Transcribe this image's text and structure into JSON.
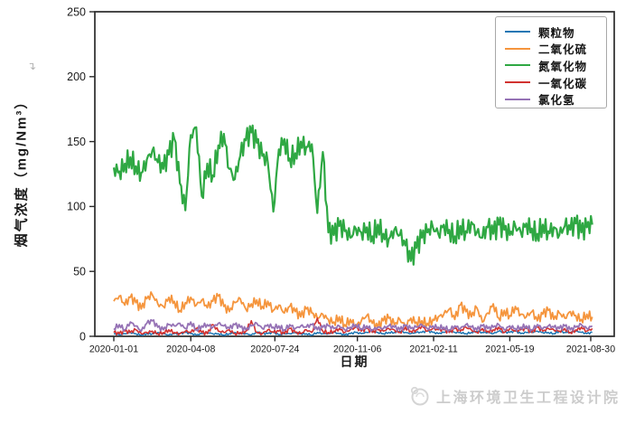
{
  "chart": {
    "return_mark": "↴"
  },
  "chart_data": {
    "type": "line",
    "title": "",
    "xlabel": "日期",
    "ylabel": "烟气浓度（mg/Nm³）",
    "ylim": [
      0,
      250
    ],
    "y_ticks": [
      0,
      50,
      100,
      150,
      200,
      250
    ],
    "x_tick_labels": [
      "2020-01-01",
      "2020-04-08",
      "2020-07-24",
      "2020-11-06",
      "2021-02-11",
      "2021-05-19",
      "2021-08-30"
    ],
    "x_tick_days": [
      0,
      98,
      205,
      310,
      407,
      504,
      607
    ],
    "x_step_days": 7,
    "x_unit": "days since 2020-01-01 (values sampled weekly)",
    "grid": false,
    "legend_position": "upper right inside",
    "series": [
      {
        "key": "particulate-matter",
        "name": "颗粒物",
        "color": "#1f77b4",
        "width": 1.5,
        "jitter": 0.7,
        "values": [
          2,
          1,
          2,
          3,
          2,
          1,
          2,
          2,
          3,
          2,
          1,
          2,
          2,
          3,
          2,
          1,
          2,
          3,
          2,
          2,
          1,
          2,
          3,
          2,
          2,
          1,
          3,
          2,
          2,
          3,
          1,
          2,
          2,
          3,
          2,
          2,
          1,
          3,
          2,
          2,
          3,
          2,
          1,
          2,
          3,
          2,
          3,
          4,
          3,
          2,
          3,
          3,
          4,
          3,
          2,
          3,
          3,
          4,
          3,
          2,
          3,
          4,
          3,
          3,
          2,
          3,
          4,
          3,
          3,
          2,
          4,
          3,
          3,
          4,
          2,
          3,
          3,
          4,
          3,
          3,
          2,
          4,
          3,
          3,
          4,
          3,
          2,
          3
        ]
      },
      {
        "key": "sulfur-dioxide",
        "name": "二氧化硫",
        "color": "#f5953d",
        "width": 1.8,
        "jitter": 3.5,
        "values": [
          27,
          31,
          24,
          30,
          26,
          21,
          29,
          32,
          25,
          23,
          30,
          27,
          20,
          26,
          30,
          24,
          28,
          22,
          27,
          31,
          23,
          19,
          26,
          29,
          21,
          25,
          28,
          23,
          27,
          20,
          24,
          18,
          23,
          19,
          15,
          21,
          18,
          14,
          17,
          13,
          11,
          15,
          9,
          13,
          8,
          12,
          16,
          10,
          7,
          12,
          14,
          9,
          13,
          8,
          14,
          11,
          12,
          10,
          13,
          15,
          17,
          21,
          13,
          24,
          19,
          15,
          22,
          11,
          18,
          25,
          14,
          20,
          16,
          23,
          17,
          15,
          19,
          12,
          17,
          20,
          13,
          18,
          14,
          19,
          16,
          13,
          17,
          15
        ]
      },
      {
        "key": "nitrogen-oxides",
        "name": "氮氧化物",
        "color": "#2fa843",
        "width": 2.2,
        "jitter": 8,
        "values": [
          130,
          127,
          133,
          138,
          131,
          126,
          136,
          143,
          134,
          129,
          140,
          152,
          118,
          97,
          155,
          161,
          108,
          133,
          124,
          147,
          156,
          129,
          121,
          139,
          151,
          157,
          149,
          139,
          134,
          96,
          144,
          152,
          137,
          141,
          150,
          146,
          148,
          95,
          142,
          80,
          78,
          85,
          81,
          76,
          83,
          80,
          84,
          77,
          86,
          79,
          75,
          82,
          78,
          70,
          58,
          68,
          76,
          80,
          84,
          79,
          86,
          82,
          77,
          85,
          81,
          88,
          80,
          76,
          84,
          79,
          86,
          82,
          78,
          85,
          80,
          87,
          83,
          79,
          86,
          81,
          84,
          78,
          85,
          82,
          87,
          80,
          84,
          86
        ]
      },
      {
        "key": "carbon-monoxide",
        "name": "一氧化碳",
        "color": "#d23230",
        "width": 1.6,
        "jitter": 1.5,
        "values": [
          3,
          2,
          4,
          3,
          5,
          2,
          3,
          4,
          2,
          3,
          5,
          3,
          2,
          4,
          3,
          6,
          3,
          2,
          9,
          4,
          3,
          5,
          2,
          3,
          4,
          12,
          3,
          2,
          5,
          3,
          4,
          2,
          6,
          3,
          2,
          5,
          3,
          14,
          4,
          3,
          4,
          6,
          3,
          5,
          7,
          4,
          6,
          3,
          5,
          4,
          6,
          5,
          3,
          7,
          4,
          5,
          8,
          4,
          6,
          5,
          5,
          3,
          6,
          4,
          7,
          5,
          3,
          6,
          4,
          5,
          7,
          3,
          6,
          4,
          5,
          6,
          3,
          7,
          4,
          6,
          5,
          4,
          6,
          3,
          5,
          7,
          4,
          6
        ]
      },
      {
        "key": "hydrogen-chloride",
        "name": "氯化氢",
        "color": "#9572b5",
        "width": 1.8,
        "jitter": 1.8,
        "values": [
          6,
          9,
          5,
          11,
          8,
          4,
          10,
          12,
          7,
          5,
          9,
          8,
          10,
          6,
          11,
          5,
          8,
          9,
          7,
          10,
          8,
          6,
          9,
          7,
          5,
          8,
          10,
          6,
          9,
          7,
          8,
          5,
          9,
          6,
          8,
          7,
          9,
          5,
          7,
          8,
          6,
          8,
          5,
          7,
          9,
          6,
          8,
          5,
          7,
          6,
          8,
          7,
          5,
          8,
          6,
          7,
          9,
          6,
          8,
          7,
          7,
          5,
          8,
          6,
          9,
          7,
          5,
          8,
          6,
          7,
          9,
          5,
          8,
          6,
          7,
          8,
          5,
          9,
          6,
          8,
          7,
          6,
          8,
          5,
          7,
          9,
          6,
          8
        ]
      }
    ]
  },
  "footer": {
    "org_name": "上海环境卫生工程设计院"
  }
}
